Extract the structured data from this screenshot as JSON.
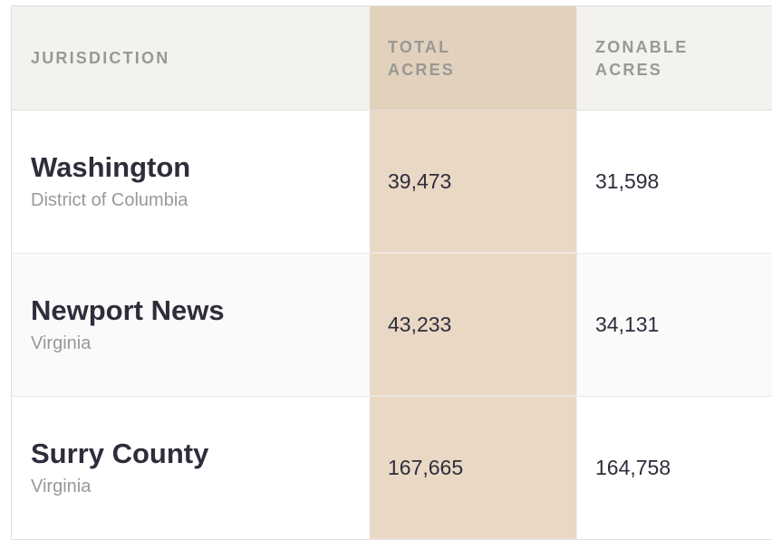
{
  "table": {
    "headers": {
      "jurisdiction": "JURISDICTION",
      "total_acres_line1": "TOTAL",
      "total_acres_line2": "ACRES",
      "zonable_acres_line1": "ZONABLE",
      "zonable_acres_line2": "ACRES"
    },
    "rows": [
      {
        "name": "Washington",
        "region": "District of Columbia",
        "total_acres": "39,473",
        "zonable_acres": "31,598"
      },
      {
        "name": "Newport News",
        "region": "Virginia",
        "total_acres": "43,233",
        "zonable_acres": "34,131"
      },
      {
        "name": "Surry County",
        "region": "Virginia",
        "total_acres": "167,665",
        "zonable_acres": "164,758"
      }
    ]
  },
  "colors": {
    "header_background": "#f3f2ef",
    "highlight_column_header": "#e2d1bc",
    "highlight_column_body": "#e8d8c4",
    "text_primary": "#2f2c3b",
    "text_secondary": "#9a9898"
  }
}
